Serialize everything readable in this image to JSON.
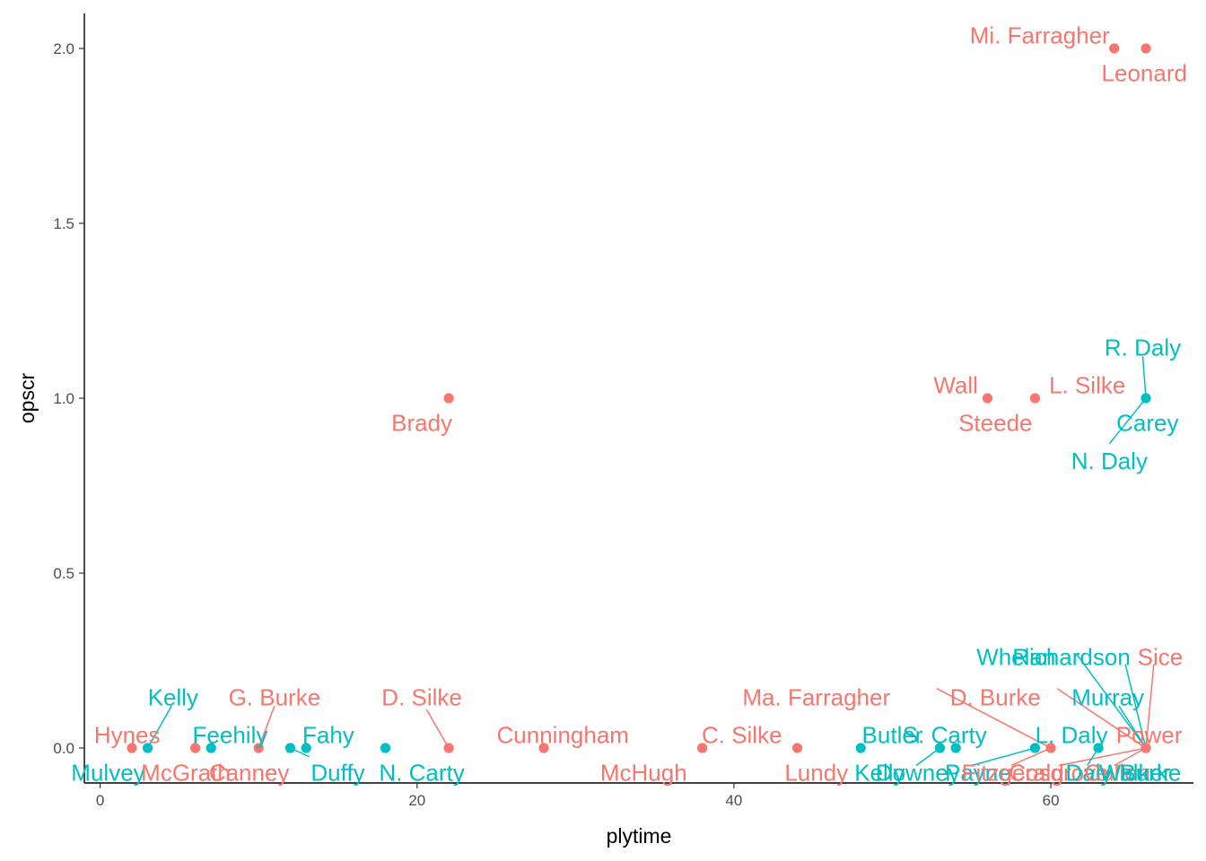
{
  "chart_data": {
    "type": "scatter",
    "title": "",
    "xlabel": "plytime",
    "ylabel": "opscr",
    "xlim": [
      -1,
      69
    ],
    "ylim": [
      -0.1,
      2.1
    ],
    "xticks": [
      0,
      20,
      40,
      60
    ],
    "xtick_labels": [
      "0",
      "20",
      "40",
      "60"
    ],
    "yticks": [
      0,
      0.5,
      1,
      1.5,
      2
    ],
    "ytick_labels": [
      "0.0",
      "0.5",
      "1.0",
      "1.5",
      "2.0"
    ],
    "grid": false,
    "legend": "none",
    "colors": {
      "group_a": "#F8766D",
      "group_b": "#00BFC4"
    },
    "points": [
      {
        "x": 64,
        "y": 2,
        "group": "group_a"
      },
      {
        "x": 66,
        "y": 2,
        "group": "group_a"
      },
      {
        "x": 22,
        "y": 1,
        "group": "group_a"
      },
      {
        "x": 56,
        "y": 1,
        "group": "group_a"
      },
      {
        "x": 59,
        "y": 1,
        "group": "group_a"
      },
      {
        "x": 66,
        "y": 1,
        "group": "group_b"
      },
      {
        "x": 2,
        "y": 0,
        "group": "group_a"
      },
      {
        "x": 3,
        "y": 0,
        "group": "group_b"
      },
      {
        "x": 6,
        "y": 0,
        "group": "group_a"
      },
      {
        "x": 7,
        "y": 0,
        "group": "group_b"
      },
      {
        "x": 10,
        "y": 0,
        "group": "group_a"
      },
      {
        "x": 12,
        "y": 0,
        "group": "group_b"
      },
      {
        "x": 13,
        "y": 0,
        "group": "group_b"
      },
      {
        "x": 18,
        "y": 0,
        "group": "group_b"
      },
      {
        "x": 22,
        "y": 0,
        "group": "group_a"
      },
      {
        "x": 28,
        "y": 0,
        "group": "group_a"
      },
      {
        "x": 38,
        "y": 0,
        "group": "group_a"
      },
      {
        "x": 44,
        "y": 0,
        "group": "group_a"
      },
      {
        "x": 48,
        "y": 0,
        "group": "group_b"
      },
      {
        "x": 53,
        "y": 0,
        "group": "group_b"
      },
      {
        "x": 54,
        "y": 0,
        "group": "group_b"
      },
      {
        "x": 59,
        "y": 0,
        "group": "group_b"
      },
      {
        "x": 60,
        "y": 0,
        "group": "group_a"
      },
      {
        "x": 63,
        "y": 0,
        "group": "group_b"
      },
      {
        "x": 66,
        "y": 0,
        "group": "group_b"
      },
      {
        "x": 66,
        "y": 0,
        "group": "group_a"
      }
    ],
    "labels": [
      {
        "text": "Mi. Farragher",
        "group": "group_a",
        "x": 64,
        "y": 2,
        "lx": 59.3,
        "ly": 2.037,
        "anchor": "middle",
        "leader": false
      },
      {
        "text": "Leonard",
        "group": "group_a",
        "x": 66,
        "y": 2,
        "lx": 65.9,
        "ly": 1.93,
        "anchor": "middle",
        "leader": false
      },
      {
        "text": "Brady",
        "group": "group_a",
        "x": 22,
        "y": 1,
        "lx": 20.3,
        "ly": 0.93,
        "anchor": "middle",
        "leader": false
      },
      {
        "text": "Wall",
        "group": "group_a",
        "x": 56,
        "y": 1,
        "lx": 54.0,
        "ly": 1.037,
        "anchor": "middle",
        "leader": false
      },
      {
        "text": "Steede",
        "group": "group_a",
        "x": 56,
        "y": 1,
        "lx": 56.5,
        "ly": 0.93,
        "anchor": "middle",
        "leader": false
      },
      {
        "text": "L. Silke",
        "group": "group_a",
        "x": 59,
        "y": 1,
        "lx": 62.3,
        "ly": 1.037,
        "anchor": "middle",
        "leader": false
      },
      {
        "text": "R. Daly",
        "group": "group_b",
        "x": 66,
        "y": 1,
        "lx": 65.8,
        "ly": 1.145,
        "anchor": "middle",
        "leader": true,
        "lead_x": 65.8,
        "lead_y": 1.12
      },
      {
        "text": "Carey",
        "group": "group_b",
        "x": 66,
        "y": 1,
        "lx": 66.1,
        "ly": 0.93,
        "anchor": "middle",
        "leader": false
      },
      {
        "text": "N. Daly",
        "group": "group_b",
        "x": 66,
        "y": 1,
        "lx": 63.7,
        "ly": 0.82,
        "anchor": "middle",
        "leader": true,
        "lead_x": 63.7,
        "lead_y": 0.87
      },
      {
        "text": "Hynes",
        "group": "group_a",
        "x": 2,
        "y": 0,
        "lx": 1.7,
        "ly": 0.037,
        "anchor": "middle",
        "leader": false
      },
      {
        "text": "Mulvey",
        "group": "group_b",
        "x": 3,
        "y": 0,
        "lx": 0.5,
        "ly": -0.07,
        "anchor": "middle",
        "leader": false
      },
      {
        "text": "Kelly",
        "group": "group_b",
        "x": 3,
        "y": 0,
        "lx": 4.6,
        "ly": 0.145,
        "anchor": "middle",
        "leader": true,
        "lead_x": 4.5,
        "lead_y": 0.12
      },
      {
        "text": "McGrath",
        "group": "group_a",
        "x": 6,
        "y": 0,
        "lx": 5.4,
        "ly": -0.07,
        "anchor": "middle",
        "leader": false
      },
      {
        "text": "Feehily",
        "group": "group_b",
        "x": 7,
        "y": 0,
        "lx": 8.2,
        "ly": 0.037,
        "anchor": "middle",
        "leader": false
      },
      {
        "text": "Canney",
        "group": "group_a",
        "x": 10,
        "y": 0,
        "lx": 9.4,
        "ly": -0.07,
        "anchor": "middle",
        "leader": false
      },
      {
        "text": "G. Burke",
        "group": "group_a",
        "x": 10,
        "y": 0,
        "lx": 11.0,
        "ly": 0.145,
        "anchor": "middle",
        "leader": true,
        "lead_x": 11.0,
        "lead_y": 0.12
      },
      {
        "text": "Duffy",
        "group": "group_b",
        "x": 12,
        "y": 0,
        "lx": 15.0,
        "ly": -0.07,
        "anchor": "middle",
        "leader": true,
        "lead_x": 13.2,
        "lead_y": -0.025
      },
      {
        "text": "Fahy",
        "group": "group_b",
        "x": 13,
        "y": 0,
        "lx": 14.4,
        "ly": 0.037,
        "anchor": "middle",
        "leader": false
      },
      {
        "text": "N. Carty",
        "group": "group_b",
        "x": 18,
        "y": 0,
        "lx": 20.3,
        "ly": -0.07,
        "anchor": "middle",
        "leader": false
      },
      {
        "text": "D. Silke",
        "group": "group_a",
        "x": 22,
        "y": 0,
        "lx": 20.3,
        "ly": 0.145,
        "anchor": "middle",
        "leader": true,
        "lead_x": 20.6,
        "lead_y": 0.11
      },
      {
        "text": "Cunningham",
        "group": "group_a",
        "x": 28,
        "y": 0,
        "lx": 29.2,
        "ly": 0.037,
        "anchor": "middle",
        "leader": false
      },
      {
        "text": "McHugh",
        "group": "group_a",
        "x": 38,
        "y": 0,
        "lx": 34.3,
        "ly": -0.07,
        "anchor": "middle",
        "leader": false
      },
      {
        "text": "C. Silke",
        "group": "group_a",
        "x": 38,
        "y": 0,
        "lx": 40.5,
        "ly": 0.037,
        "anchor": "middle",
        "leader": false
      },
      {
        "text": "Lundy",
        "group": "group_a",
        "x": 44,
        "y": 0,
        "lx": 45.2,
        "ly": -0.07,
        "anchor": "middle",
        "leader": false
      },
      {
        "text": "Butler",
        "group": "group_b",
        "x": 48,
        "y": 0,
        "lx": 50.0,
        "ly": 0.037,
        "anchor": "middle",
        "leader": false
      },
      {
        "text": "Kelly",
        "group": "group_b",
        "x": 48,
        "y": 0,
        "lx": 49.2,
        "ly": -0.07,
        "anchor": "middle",
        "leader": false
      },
      {
        "text": "Downey",
        "group": "group_b",
        "x": 53,
        "y": 0,
        "lx": 51.6,
        "ly": -0.07,
        "anchor": "middle",
        "leader": true,
        "lead_x": 51.5,
        "lead_y": -0.05
      },
      {
        "text": "S. Carty",
        "group": "group_b",
        "x": 54,
        "y": 0,
        "lx": 53.3,
        "ly": 0.037,
        "anchor": "middle",
        "leader": false
      },
      {
        "text": "Payne",
        "group": "group_b",
        "x": 59,
        "y": 0,
        "lx": 55.4,
        "ly": -0.07,
        "anchor": "middle",
        "leader": true,
        "lead_x": 55.0,
        "lead_y": -0.05
      },
      {
        "text": "L. Daly",
        "group": "group_b",
        "x": 59,
        "y": 0,
        "lx": 61.3,
        "ly": 0.037,
        "anchor": "middle",
        "leader": false
      },
      {
        "text": "Fitzgerald",
        "group": "group_a",
        "x": 60,
        "y": 0,
        "lx": 57.6,
        "ly": -0.07,
        "anchor": "middle",
        "leader": true,
        "lead_x": 57.5,
        "lead_y": -0.05
      },
      {
        "text": "Cosgrove",
        "group": "group_a",
        "x": 66,
        "y": 0,
        "lx": 60.5,
        "ly": -0.07,
        "anchor": "middle",
        "leader": true,
        "lead_x": 60.5,
        "lead_y": -0.05
      },
      {
        "text": "Daly",
        "group": "group_b",
        "x": 63,
        "y": 0,
        "lx": 62.4,
        "ly": -0.07,
        "anchor": "middle",
        "leader": true,
        "lead_x": 62.3,
        "lead_y": -0.05
      },
      {
        "text": "Cullen",
        "group": "group_a",
        "x": 66,
        "y": 0,
        "lx": 64.2,
        "ly": -0.07,
        "anchor": "middle",
        "leader": true,
        "lead_x": 64.0,
        "lead_y": -0.05
      },
      {
        "text": "Walker",
        "group": "group_b",
        "x": 66,
        "y": 0,
        "lx": 65.3,
        "ly": -0.07,
        "anchor": "middle",
        "leader": false
      },
      {
        "text": "Burke",
        "group": "group_b",
        "x": 66,
        "y": 0,
        "lx": 66.3,
        "ly": -0.07,
        "anchor": "middle",
        "leader": false
      },
      {
        "text": "Power",
        "group": "group_a",
        "x": 66,
        "y": 0,
        "lx": 66.2,
        "ly": 0.037,
        "anchor": "middle",
        "leader": false
      },
      {
        "text": "Whelan",
        "group": "group_b",
        "x": 66,
        "y": 0,
        "lx": 57.8,
        "ly": 0.26,
        "anchor": "middle",
        "leader": true,
        "lead_x": 61.6,
        "lead_y": 0.27
      },
      {
        "text": "Richardson",
        "group": "group_b",
        "x": 66,
        "y": 0,
        "lx": 61.3,
        "ly": 0.26,
        "anchor": "middle",
        "leader": true,
        "lead_x": 64.7,
        "lead_y": 0.24
      },
      {
        "text": "Sice",
        "group": "group_a",
        "x": 66,
        "y": 0,
        "lx": 66.9,
        "ly": 0.26,
        "anchor": "middle",
        "leader": true,
        "lead_x": 66.5,
        "lead_y": 0.24
      },
      {
        "text": "Ma. Farragher",
        "group": "group_a",
        "x": 60,
        "y": 0,
        "lx": 45.2,
        "ly": 0.145,
        "anchor": "middle",
        "leader": true,
        "lead_x": 52.8,
        "lead_y": 0.17
      },
      {
        "text": "D. Burke",
        "group": "group_a",
        "x": 66,
        "y": 0,
        "lx": 56.5,
        "ly": 0.145,
        "anchor": "middle",
        "leader": true,
        "lead_x": 60.4,
        "lead_y": 0.17
      },
      {
        "text": "Murray",
        "group": "group_b",
        "x": 66,
        "y": 0,
        "lx": 63.6,
        "ly": 0.145,
        "anchor": "middle",
        "leader": true,
        "lead_x": 64.3,
        "lead_y": 0.12
      }
    ]
  }
}
